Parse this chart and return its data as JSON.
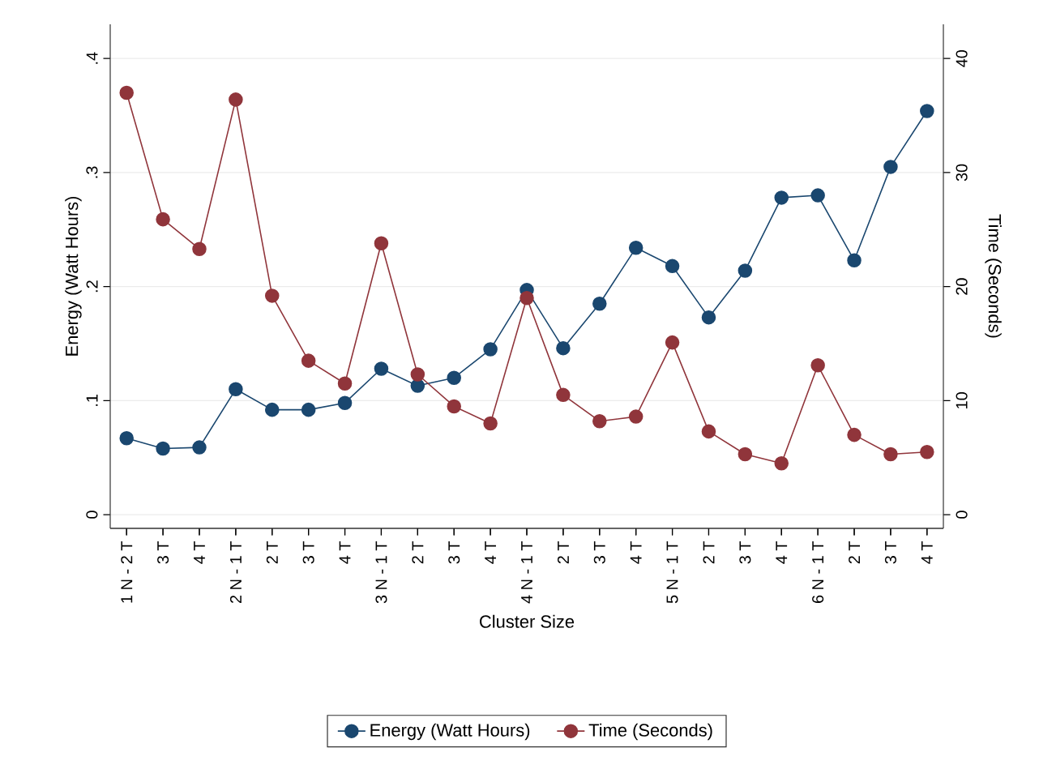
{
  "chart_data": {
    "type": "line",
    "xlabel": "Cluster Size",
    "ylabel": "Energy (Watt Hours)",
    "y2label": "Time (Seconds)",
    "categories": [
      "1 N - 2 T",
      "3 T",
      "4 T",
      "2 N - 1 T",
      "2 T",
      "3 T",
      "4 T",
      "3 N - 1 T",
      "2 T",
      "3 T",
      "4 T",
      "4 N - 1 T",
      "2 T",
      "3 T",
      "4 T",
      "5 N - 1 T",
      "2 T",
      "3 T",
      "4 T",
      "6 N - 1 T",
      "2 T",
      "3 T",
      "4 T"
    ],
    "series": [
      {
        "name": "Energy (Watt Hours)",
        "color": "#1a476f",
        "values": [
          0.067,
          0.058,
          0.059,
          0.11,
          0.092,
          0.092,
          0.098,
          0.128,
          0.113,
          0.12,
          0.145,
          0.197,
          0.146,
          0.185,
          0.234,
          0.218,
          0.173,
          0.214,
          0.278,
          0.28,
          0.223,
          0.305,
          0.354
        ]
      },
      {
        "name": "Time (Seconds)",
        "color": "#90353b",
        "axis": "y2",
        "values": [
          37.0,
          25.9,
          23.3,
          36.4,
          19.2,
          13.5,
          11.5,
          23.8,
          12.3,
          9.5,
          8.0,
          19.0,
          10.5,
          8.2,
          8.6,
          15.1,
          7.3,
          5.3,
          4.5,
          13.1,
          7.0,
          5.3,
          5.5
        ]
      }
    ],
    "ylim": [
      -0.012,
      0.43
    ],
    "yticks": [
      0,
      {
        "value": 0.1,
        "label": ".1"
      },
      {
        "value": 0.2,
        "label": ".2"
      },
      {
        "value": 0.3,
        "label": ".3"
      },
      {
        "value": 0.4,
        "label": ".4"
      }
    ],
    "y2lim": [
      -1.2,
      43
    ],
    "y2ticks": [
      0,
      10,
      20,
      30,
      40
    ],
    "grid": "y",
    "legend": "bottom",
    "marker": "circle",
    "line_style": "solid"
  }
}
